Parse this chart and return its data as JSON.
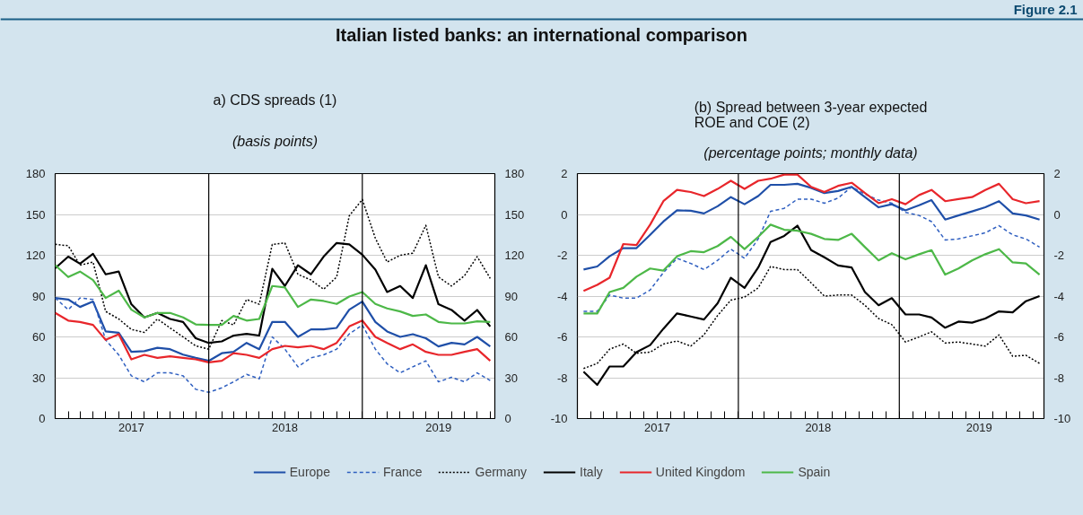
{
  "chart_data": [
    {
      "type": "line",
      "title": "a) CDS spreads (1)",
      "subtitle": "(basis points)",
      "annotations": [
        "Figure 2.1",
        "Italian listed banks: an international comparison"
      ],
      "x": [
        "2017-01-01",
        "2017-02-01",
        "2017-03-01",
        "2017-04-01",
        "2017-05-01",
        "2017-06-01",
        "2017-07-01",
        "2017-08-01",
        "2017-09-01",
        "2017-10-01",
        "2017-11-01",
        "2017-12-01",
        "2018-01-01",
        "2018-02-01",
        "2018-03-01",
        "2018-04-01",
        "2018-05-01",
        "2018-06-01",
        "2018-07-01",
        "2018-08-01",
        "2018-09-01",
        "2018-10-01",
        "2018-11-01",
        "2018-12-01",
        "2019-01-01",
        "2019-02-01",
        "2019-03-01",
        "2019-04-01",
        "2019-05-01",
        "2019-06-01",
        "2019-07-01",
        "2019-08-01",
        "2019-09-01",
        "2019-10-01",
        "2019-11-01"
      ],
      "series": [
        {
          "name": "Europe",
          "color": "#1f4fa8",
          "values": [
            88.6,
            87.5,
            82,
            86,
            64,
            63,
            49,
            49.5,
            52,
            51,
            47,
            44.6,
            42.4,
            48,
            49,
            55.6,
            51,
            71,
            71,
            60,
            65.5,
            65.5,
            66.6,
            80,
            86,
            71,
            64,
            60,
            62,
            59,
            53,
            55.6,
            54.5,
            60,
            53
          ]
        },
        {
          "name": "France",
          "color": "#2f5fc0",
          "line_style": "dashed",
          "values": [
            88.6,
            80,
            88.6,
            87.5,
            57.8,
            46.8,
            31.4,
            27,
            33.6,
            33.6,
            31.4,
            21.5,
            19.3,
            22.6,
            27,
            32.5,
            29.2,
            60,
            51,
            38,
            44.6,
            46.8,
            51,
            62.2,
            68.8,
            51,
            40.2,
            33.6,
            38,
            42.4,
            27,
            30.3,
            27,
            33.6,
            28
          ]
        },
        {
          "name": "Germany",
          "color": "#000000",
          "line_style": "dotted",
          "values": [
            128,
            127,
            112.7,
            115,
            78.7,
            73.2,
            65.5,
            63.3,
            73.2,
            66.6,
            60,
            53.4,
            51,
            72,
            68.8,
            87.5,
            84,
            128,
            129,
            106,
            101.8,
            95,
            104,
            149,
            161,
            132.5,
            115,
            120,
            121.5,
            142,
            104,
            97.4,
            105,
            119,
            103
          ]
        },
        {
          "name": "Italy",
          "color": "#000000",
          "values": [
            110.5,
            119,
            113.8,
            121,
            106,
            108,
            84,
            74.3,
            77.6,
            73.2,
            71,
            59,
            55.6,
            56.7,
            61,
            62.2,
            61,
            110,
            97.4,
            112.7,
            106,
            119,
            129,
            128,
            120.4,
            109.5,
            93,
            97.4,
            88.6,
            112.7,
            84,
            79.8,
            72,
            79.8,
            67.7
          ]
        },
        {
          "name": "United Kingdom",
          "color": "#e8262b",
          "values": [
            77.6,
            72,
            71,
            68.8,
            57.8,
            62,
            43.5,
            46.8,
            44.6,
            45.7,
            44.6,
            43.5,
            41.3,
            42.4,
            48,
            46.8,
            44.6,
            51,
            53.4,
            52.3,
            53.4,
            51,
            55.6,
            67.7,
            72,
            60,
            55.6,
            51,
            54.5,
            49,
            46.8,
            46.8,
            49,
            51,
            42.4
          ]
        },
        {
          "name": "Spain",
          "color": "#4db848",
          "values": [
            112.7,
            104,
            108,
            101.8,
            88.6,
            94,
            80,
            74.3,
            77.6,
            77.6,
            74.3,
            69.2,
            68.8,
            68.8,
            75.4,
            72,
            73.2,
            97.4,
            96.3,
            82,
            87.5,
            86.4,
            84.2,
            89.7,
            93,
            84.2,
            80.9,
            78.7,
            75.4,
            76.5,
            71,
            69.9,
            69.9,
            71.4,
            71
          ]
        }
      ],
      "xlim": [
        "2017-01-01",
        "2019-11-12"
      ],
      "xticks": [
        {
          "value": "2017-02-01",
          "label": null
        },
        {
          "value": "2017-03-01",
          "label": null
        },
        {
          "value": "2017-04-01",
          "label": null
        },
        {
          "value": "2017-05-01",
          "label": null
        },
        {
          "value": "2017-06-01",
          "label": null
        },
        {
          "value": "2017-07-01",
          "label": "2017"
        },
        {
          "value": "2017-08-01",
          "label": null
        },
        {
          "value": "2017-09-01",
          "label": null
        },
        {
          "value": "2017-10-01",
          "label": null
        },
        {
          "value": "2017-11-01",
          "label": null
        },
        {
          "value": "2017-12-01",
          "label": null
        },
        {
          "value": "2018-01-01",
          "label": null
        },
        {
          "value": "2018-02-01",
          "label": null
        },
        {
          "value": "2018-03-01",
          "label": null
        },
        {
          "value": "2018-04-01",
          "label": null
        },
        {
          "value": "2018-05-01",
          "label": null
        },
        {
          "value": "2018-06-01",
          "label": null
        },
        {
          "value": "2018-07-01",
          "label": "2018"
        },
        {
          "value": "2018-08-01",
          "label": null
        },
        {
          "value": "2018-09-01",
          "label": null
        },
        {
          "value": "2018-10-01",
          "label": null
        },
        {
          "value": "2018-11-01",
          "label": null
        },
        {
          "value": "2018-12-01",
          "label": null
        },
        {
          "value": "2019-01-01",
          "label": null
        },
        {
          "value": "2019-02-01",
          "label": null
        },
        {
          "value": "2019-03-01",
          "label": null
        },
        {
          "value": "2019-04-01",
          "label": null
        },
        {
          "value": "2019-05-01",
          "label": null
        },
        {
          "value": "2019-06-01",
          "label": null
        },
        {
          "value": "2019-07-01",
          "label": "2019"
        },
        {
          "value": "2019-08-01",
          "label": null
        },
        {
          "value": "2019-09-01",
          "label": null
        },
        {
          "value": "2019-10-01",
          "label": null
        },
        {
          "value": "2019-11-01",
          "label": null
        }
      ],
      "ylim": [
        0,
        180
      ],
      "yticks": [
        0,
        30,
        60,
        90,
        120,
        150,
        180
      ],
      "y2lim": [
        0,
        180
      ],
      "y2ticks": [
        0,
        30,
        60,
        90,
        120,
        150,
        180
      ],
      "ref_lines": [
        {
          "axis": "x",
          "value": "2018-01-01",
          "label": null,
          "color": "#000000"
        },
        {
          "axis": "x",
          "value": "2019-01-01",
          "label": null,
          "color": "#000000"
        }
      ],
      "grid": "y",
      "legend": "bottom"
    },
    {
      "type": "line",
      "title": "(b) Spread between 3-year expected ROE and COE (2)",
      "subtitle": "(percentage points; monthly data)",
      "x": [
        "2017-01-15",
        "2017-02-15",
        "2017-03-15",
        "2017-04-15",
        "2017-05-15",
        "2017-06-15",
        "2017-07-15",
        "2017-08-15",
        "2017-09-15",
        "2017-10-15",
        "2017-11-15",
        "2017-12-15",
        "2018-01-15",
        "2018-02-15",
        "2018-03-15",
        "2018-04-15",
        "2018-05-15",
        "2018-06-15",
        "2018-07-15",
        "2018-08-15",
        "2018-09-15",
        "2018-10-15",
        "2018-11-15",
        "2018-12-15",
        "2019-01-15",
        "2019-02-15",
        "2019-03-15",
        "2019-04-15",
        "2019-05-15",
        "2019-06-15",
        "2019-07-15",
        "2019-08-15",
        "2019-09-15",
        "2019-10-15",
        "2019-11-15"
      ],
      "series": [
        {
          "color": "#1f4fa8",
          "values": [
            -2.7,
            -2.55,
            -2.05,
            -1.65,
            -1.65,
            -1,
            -0.35,
            0.2,
            0.18,
            0.05,
            0.4,
            0.85,
            0.5,
            0.9,
            1.45,
            1.45,
            1.5,
            1.3,
            1.05,
            1.15,
            1.35,
            0.85,
            0.35,
            0.5,
            0.2,
            0.45,
            0.7,
            -0.25,
            -0.05,
            0.15,
            0.35,
            0.65,
            0.05,
            -0.05,
            -0.25
          ]
        },
        {
          "color": "#2f5fc0",
          "line_style": "dashed",
          "values": [
            -4.75,
            -4.75,
            -3.95,
            -4.1,
            -4.1,
            -3.7,
            -2.85,
            -2.15,
            -2.4,
            -2.7,
            -2.25,
            -1.7,
            -2.15,
            -1.2,
            0.15,
            0.3,
            0.75,
            0.75,
            0.55,
            0.8,
            1.35,
            1,
            0.7,
            0.55,
            0.1,
            -0.05,
            -0.35,
            -1.25,
            -1.2,
            -1.05,
            -0.9,
            -0.55,
            -1,
            -1.2,
            -1.6
          ]
        },
        {
          "color": "#000000",
          "line_style": "dotted",
          "values": [
            -7.55,
            -7.3,
            -6.6,
            -6.35,
            -6.8,
            -6.75,
            -6.35,
            -6.2,
            -6.45,
            -5.9,
            -4.95,
            -4.2,
            -4.05,
            -3.6,
            -2.55,
            -2.7,
            -2.7,
            -3.35,
            -4,
            -3.95,
            -3.95,
            -4.45,
            -5.1,
            -5.4,
            -6.25,
            -6,
            -5.75,
            -6.3,
            -6.25,
            -6.35,
            -6.45,
            -5.9,
            -6.95,
            -6.9,
            -7.3
          ]
        },
        {
          "color": "#000000",
          "values": [
            -7.7,
            -8.35,
            -7.45,
            -7.45,
            -6.75,
            -6.4,
            -5.6,
            -4.85,
            -5,
            -5.15,
            -4.35,
            -3.1,
            -3.6,
            -2.6,
            -1.35,
            -1.05,
            -0.55,
            -1.75,
            -2.1,
            -2.5,
            -2.6,
            -3.8,
            -4.45,
            -4.1,
            -4.9,
            -4.9,
            -5.05,
            -5.55,
            -5.25,
            -5.3,
            -5.1,
            -4.75,
            -4.8,
            -4.25,
            -4
          ]
        },
        {
          "color": "#e8262b",
          "values": [
            -3.75,
            -3.45,
            -3.1,
            -1.45,
            -1.5,
            -0.5,
            0.65,
            1.2,
            1.1,
            0.9,
            1.25,
            1.65,
            1.25,
            1.65,
            1.75,
            1.95,
            1.95,
            1.35,
            1.1,
            1.4,
            1.55,
            1.05,
            0.55,
            0.75,
            0.5,
            0.95,
            1.2,
            0.65,
            0.75,
            0.85,
            1.2,
            1.5,
            0.75,
            0.55,
            0.65
          ]
        },
        {
          "color": "#4db848",
          "values": [
            -4.85,
            -4.85,
            -3.8,
            -3.6,
            -3.05,
            -2.65,
            -2.75,
            -2.05,
            -1.8,
            -1.85,
            -1.55,
            -1.1,
            -1.7,
            -1.1,
            -0.5,
            -0.75,
            -0.8,
            -0.95,
            -1.2,
            -1.25,
            -0.95,
            -1.6,
            -2.25,
            -1.9,
            -2.2,
            -1.95,
            -1.75,
            -2.95,
            -2.65,
            -2.25,
            -1.95,
            -1.7,
            -2.35,
            -2.4,
            -2.95
          ]
        }
      ],
      "xlim": [
        "2017-01-01",
        "2019-11-25"
      ],
      "xticks": [
        {
          "value": "2017-02-01",
          "label": null
        },
        {
          "value": "2017-03-01",
          "label": null
        },
        {
          "value": "2017-04-01",
          "label": null
        },
        {
          "value": "2017-05-01",
          "label": null
        },
        {
          "value": "2017-06-01",
          "label": null
        },
        {
          "value": "2017-07-01",
          "label": "2017"
        },
        {
          "value": "2017-08-01",
          "label": null
        },
        {
          "value": "2017-09-01",
          "label": null
        },
        {
          "value": "2017-10-01",
          "label": null
        },
        {
          "value": "2017-11-01",
          "label": null
        },
        {
          "value": "2017-12-01",
          "label": null
        },
        {
          "value": "2018-01-01",
          "label": null
        },
        {
          "value": "2018-02-01",
          "label": null
        },
        {
          "value": "2018-03-01",
          "label": null
        },
        {
          "value": "2018-04-01",
          "label": null
        },
        {
          "value": "2018-05-01",
          "label": null
        },
        {
          "value": "2018-06-01",
          "label": null
        },
        {
          "value": "2018-07-01",
          "label": "2018"
        },
        {
          "value": "2018-08-01",
          "label": null
        },
        {
          "value": "2018-09-01",
          "label": null
        },
        {
          "value": "2018-10-01",
          "label": null
        },
        {
          "value": "2018-11-01",
          "label": null
        },
        {
          "value": "2018-12-01",
          "label": null
        },
        {
          "value": "2019-01-01",
          "label": null
        },
        {
          "value": "2019-02-01",
          "label": null
        },
        {
          "value": "2019-03-01",
          "label": null
        },
        {
          "value": "2019-04-01",
          "label": null
        },
        {
          "value": "2019-05-01",
          "label": null
        },
        {
          "value": "2019-06-01",
          "label": null
        },
        {
          "value": "2019-07-01",
          "label": "2019"
        },
        {
          "value": "2019-08-01",
          "label": null
        },
        {
          "value": "2019-09-01",
          "label": null
        },
        {
          "value": "2019-10-01",
          "label": null
        },
        {
          "value": "2019-11-01",
          "label": null
        }
      ],
      "ylim": [
        -10,
        2
      ],
      "yticks": [
        -10,
        -8,
        -6,
        -4,
        -2,
        0,
        2
      ],
      "y2lim": [
        -10,
        2
      ],
      "y2ticks": [
        -10,
        -8,
        -6,
        -4,
        -2,
        0,
        2
      ],
      "ref_lines": [
        {
          "axis": "x",
          "value": "2018-01-01",
          "label": null,
          "color": "#000000"
        },
        {
          "axis": "x",
          "value": "2019-01-01",
          "label": null,
          "color": "#000000"
        }
      ],
      "grid": "y"
    }
  ]
}
